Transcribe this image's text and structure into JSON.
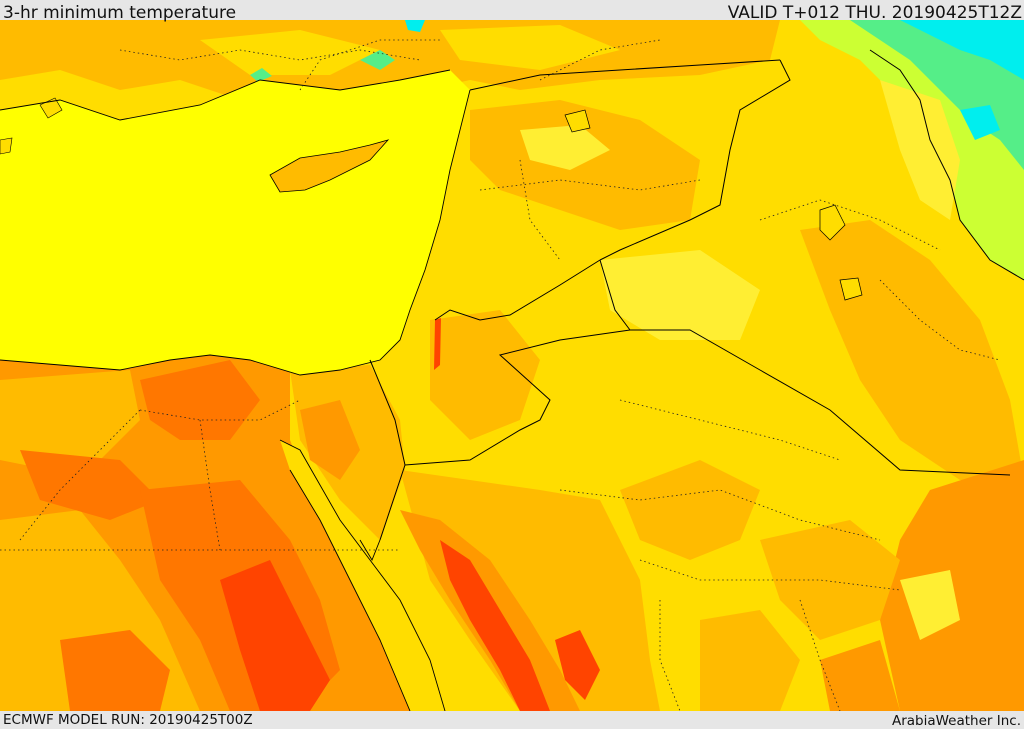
{
  "header": {
    "title": "3-hr minimum temperature",
    "valid": "VALID T+012 THU. 20190425T12Z"
  },
  "footer": {
    "model_run": "ECMWF MODEL RUN: 20190425T00Z",
    "credit": "ArabiaWeather Inc."
  },
  "palette": {
    "sea": "#ffff00",
    "cool_yellow": "#ffdd00",
    "light_orange": "#ffbb00",
    "orange": "#ff9900",
    "dark_orange": "#ff7700",
    "red_orange": "#ff4400",
    "yellow_green": "#ccff33",
    "green": "#55ee88",
    "cyan": "#00eeee",
    "border_line": "#000000"
  }
}
